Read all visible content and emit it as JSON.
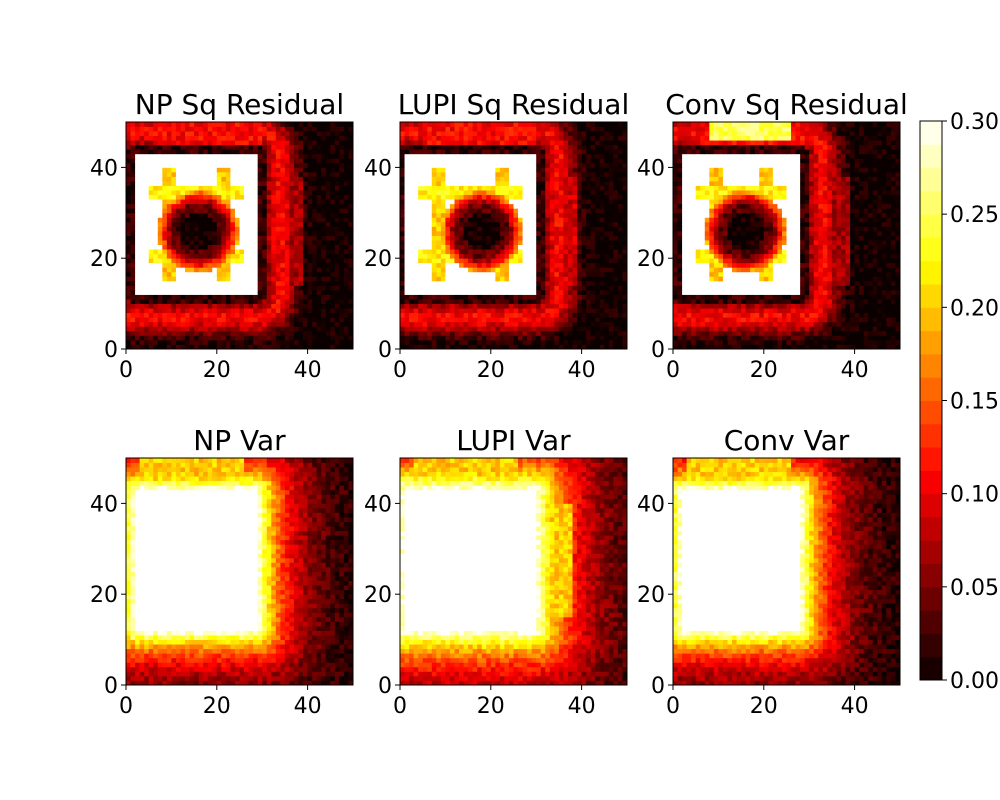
{
  "figure": {
    "panels": [
      {
        "title": "NP Sq Residual",
        "kind": "residual",
        "variant": "np"
      },
      {
        "title": "LUPI Sq Residual",
        "kind": "residual",
        "variant": "lupi"
      },
      {
        "title": "Conv Sq Residual",
        "kind": "residual",
        "variant": "conv"
      },
      {
        "title": "NP Var",
        "kind": "variance",
        "variant": "np"
      },
      {
        "title": "LUPI Var",
        "kind": "variance",
        "variant": "lupi"
      },
      {
        "title": "Conv Var",
        "kind": "variance",
        "variant": "conv"
      }
    ],
    "colorbar": {
      "colormap": "hot",
      "vmin": 0.0,
      "vmax": 0.3,
      "ticks": [
        "0.00",
        "0.05",
        "0.10",
        "0.15",
        "0.20",
        "0.25",
        "0.30"
      ]
    }
  },
  "chart_data": {
    "type": "heatmap",
    "grid_size": [
      50,
      50
    ],
    "xlim": [
      0,
      50
    ],
    "ylim": [
      0,
      50
    ],
    "xticks": [
      "0",
      "20",
      "40"
    ],
    "yticks": [
      "0",
      "20",
      "40"
    ],
    "colormap": "hot",
    "value_range": [
      0.0,
      0.3
    ],
    "colorbar_position": "right",
    "panels": [
      {
        "title": "NP Sq Residual",
        "feature": "bright square ring (x 2-29, y 12-43) with dark circular hole near (16, 26)"
      },
      {
        "title": "LUPI Sq Residual",
        "feature": "bright square ring (x 1-30, y 12-43) with dark circular hole near (18, 26), dimmer right arc"
      },
      {
        "title": "Conv Sq Residual",
        "feature": "bright square ring (x 2-28, y 12-43) with dark circular hole near (16, 26), bright top lobe"
      },
      {
        "title": "NP Var",
        "feature": "saturated square region (x 2-28, y 12-43) fading outward"
      },
      {
        "title": "LUPI Var",
        "feature": "saturated square region (x 1-31, y 12-42) with broad glow"
      },
      {
        "title": "Conv Var",
        "feature": "saturated square region (x 2-29, y 12-42) fading outward"
      }
    ]
  }
}
